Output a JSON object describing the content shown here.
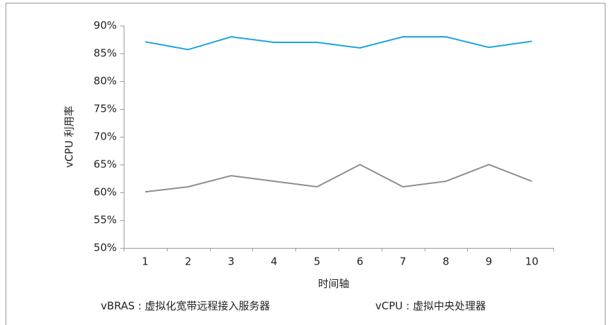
{
  "chart_data": {
    "type": "line",
    "ylabel": "vCPU 利用率",
    "xlabel": "时间轴",
    "categories": [
      1,
      2,
      3,
      4,
      5,
      6,
      7,
      8,
      9,
      10
    ],
    "series": [
      {
        "color": "#1aa3e0",
        "values": [
          87.1,
          85.7,
          88,
          87,
          87,
          86,
          88,
          88,
          86.1,
          87.2
        ]
      },
      {
        "color": "#8c8c8c",
        "values": [
          60.1,
          61,
          63,
          62,
          61,
          65,
          61,
          62,
          65,
          62
        ]
      }
    ],
    "ylim": [
      50,
      90
    ],
    "yticks": [
      {
        "value": 50,
        "label": "50%"
      },
      {
        "value": 55,
        "label": "55%"
      },
      {
        "value": 60,
        "label": "60%"
      },
      {
        "value": 65,
        "label": "65%"
      },
      {
        "value": 70,
        "label": "70%"
      },
      {
        "value": 75,
        "label": "75%"
      },
      {
        "value": 80,
        "label": "80%"
      },
      {
        "value": 85,
        "label": "85%"
      },
      {
        "value": 90,
        "label": "90%"
      }
    ],
    "grid": false,
    "annotations": [
      "vBRAS : 虚拟化宽带远程接入服务器",
      "vCPU : 虚拟中央处理器"
    ]
  }
}
